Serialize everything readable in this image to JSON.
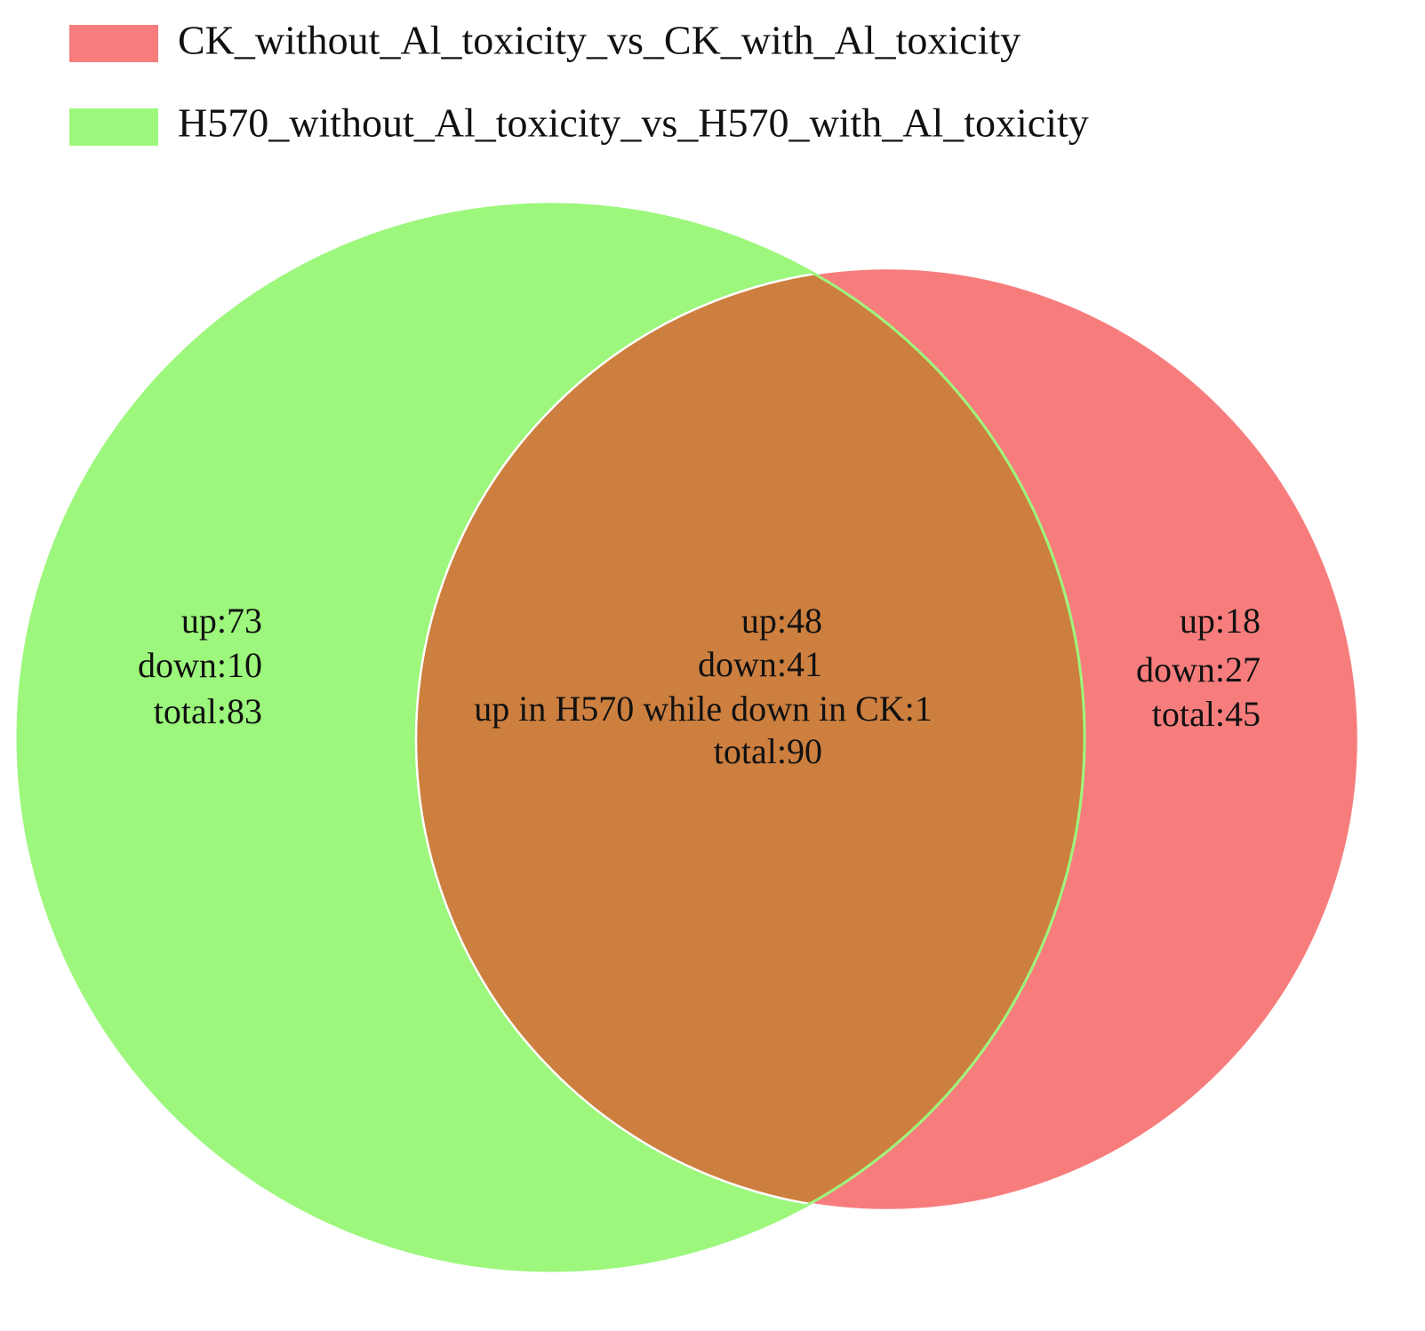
{
  "chart_data": {
    "type": "venn",
    "sets": [
      {
        "name": "CK_without_Al_toxicity_vs_CK_with_Al_toxicity",
        "color": "#f77d7d"
      },
      {
        "name": "H570_without_Al_toxicity_vs_H570_with_Al_toxicity",
        "color": "#9cf77c"
      }
    ],
    "overlap_color": "#cd7f3f",
    "regions": [
      {
        "lines": [
          "up:73",
          "down:10",
          "total:83"
        ]
      },
      {
        "lines": [
          "up:48",
          "down:41",
          "up in H570 while down in CK:1",
          "total:90"
        ]
      },
      {
        "lines": [
          "up:18",
          "down:27",
          "total:45"
        ]
      }
    ]
  }
}
